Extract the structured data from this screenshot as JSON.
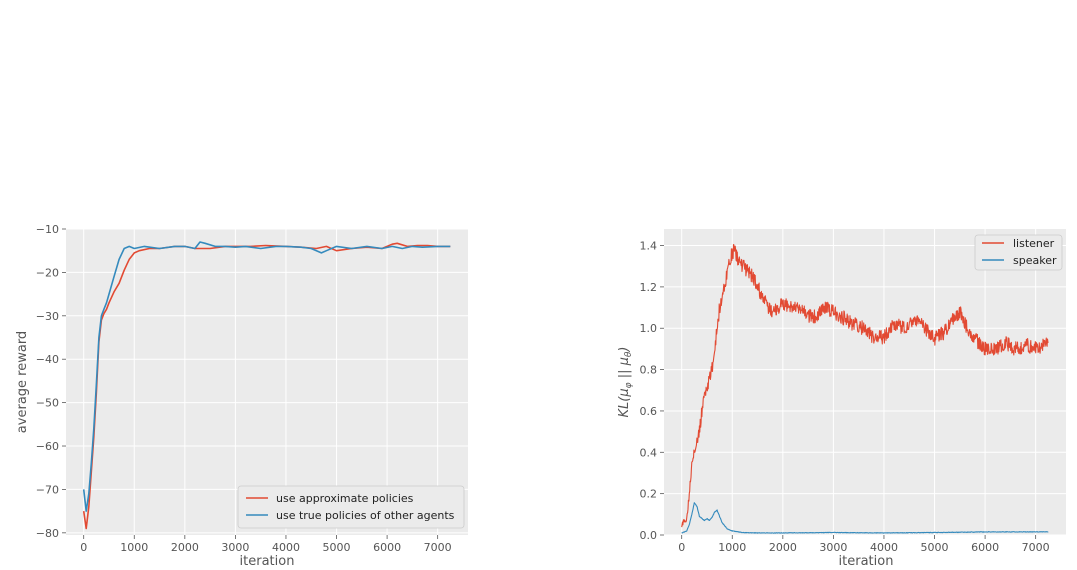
{
  "chart_data": [
    {
      "type": "line",
      "xlabel": "iteration",
      "ylabel": "average reward",
      "xlim": [
        -350,
        7600
      ],
      "ylim": [
        -80.5,
        -10
      ],
      "xticks": [
        0,
        1000,
        2000,
        3000,
        4000,
        5000,
        6000,
        7000
      ],
      "yticks": [
        -80,
        -70,
        -60,
        -50,
        -40,
        -30,
        -20,
        -10
      ],
      "xtick_labels": [
        "0",
        "1000",
        "2000",
        "3000",
        "4000",
        "5000",
        "6000",
        "7000"
      ],
      "ytick_labels": [
        "−80",
        "−70",
        "−60",
        "−50",
        "−40",
        "−30",
        "−20",
        "−10"
      ],
      "grid": true,
      "legend": "lower-right",
      "series": [
        {
          "name": "use approximate policies",
          "color": "#E24A33",
          "x": [
            0,
            50,
            100,
            150,
            200,
            250,
            300,
            350,
            400,
            450,
            500,
            600,
            700,
            800,
            900,
            1000,
            1100,
            1300,
            1500,
            1800,
            2000,
            2200,
            2500,
            2800,
            3000,
            3300,
            3600,
            4000,
            4300,
            4600,
            4800,
            5000,
            5300,
            5600,
            5900,
            6100,
            6200,
            6400,
            6600,
            6800,
            7000,
            7250
          ],
          "y": [
            -75,
            -79,
            -74,
            -66,
            -58,
            -48,
            -36,
            -31,
            -29.5,
            -28.5,
            -27,
            -24.5,
            -22.5,
            -19.5,
            -17,
            -15.5,
            -15,
            -14.5,
            -14.5,
            -14,
            -14,
            -14.5,
            -14.5,
            -14,
            -14,
            -14,
            -13.8,
            -14,
            -14.2,
            -14.5,
            -14,
            -15,
            -14.5,
            -14.2,
            -14.5,
            -13.5,
            -13.3,
            -14,
            -13.8,
            -13.8,
            -14,
            -14
          ]
        },
        {
          "name": "use true policies of other agents",
          "color": "#348ABD",
          "x": [
            0,
            50,
            100,
            150,
            200,
            250,
            300,
            350,
            400,
            450,
            500,
            600,
            700,
            800,
            900,
            1000,
            1200,
            1500,
            1800,
            2000,
            2200,
            2300,
            2400,
            2600,
            2800,
            3000,
            3200,
            3500,
            3800,
            4000,
            4300,
            4500,
            4700,
            4800,
            5000,
            5300,
            5600,
            5900,
            6100,
            6300,
            6500,
            6700,
            7000,
            7250
          ],
          "y": [
            -70,
            -75,
            -71,
            -64,
            -56,
            -46,
            -35,
            -30,
            -28.5,
            -27,
            -25,
            -21,
            -17,
            -14.5,
            -14,
            -14.5,
            -14,
            -14.5,
            -14,
            -14,
            -14.5,
            -13,
            -13.3,
            -14,
            -14,
            -14.2,
            -14,
            -14.5,
            -14,
            -14,
            -14.2,
            -14.5,
            -15.5,
            -15,
            -14,
            -14.5,
            -14,
            -14.5,
            -14,
            -14.5,
            -14,
            -14.2,
            -14,
            -14
          ]
        }
      ]
    },
    {
      "type": "line",
      "xlabel": "iteration",
      "ylabel": "KL(μ̂φ || μθ)",
      "ylabel_main": "KL(",
      "ylabel_mu": "μ",
      "ylabel_phi": "φ",
      "ylabel_sep": " || ",
      "ylabel_theta": "θ",
      "ylabel_close": ")",
      "xlim": [
        -350,
        7600
      ],
      "ylim": [
        0,
        1.48
      ],
      "xticks": [
        0,
        1000,
        2000,
        3000,
        4000,
        5000,
        6000,
        7000
      ],
      "yticks": [
        0.0,
        0.2,
        0.4,
        0.6,
        0.8,
        1.0,
        1.2,
        1.4
      ],
      "xtick_labels": [
        "0",
        "1000",
        "2000",
        "3000",
        "4000",
        "5000",
        "6000",
        "7000"
      ],
      "ytick_labels": [
        "0.0",
        "0.2",
        "0.4",
        "0.6",
        "0.8",
        "1.0",
        "1.2",
        "1.4"
      ],
      "grid": true,
      "legend": "top-right",
      "series": [
        {
          "name": "listener",
          "color": "#E24A33",
          "noise": 0.035,
          "x": [
            0,
            100,
            150,
            200,
            250,
            300,
            350,
            400,
            450,
            500,
            550,
            600,
            650,
            700,
            750,
            800,
            850,
            900,
            950,
            1000,
            1050,
            1100,
            1200,
            1300,
            1400,
            1500,
            1600,
            1700,
            1800,
            2000,
            2200,
            2400,
            2600,
            2800,
            3000,
            3200,
            3400,
            3600,
            3800,
            4000,
            4200,
            4400,
            4600,
            4800,
            5000,
            5200,
            5400,
            5500,
            5600,
            5800,
            6000,
            6200,
            6400,
            6600,
            6800,
            7000,
            7250
          ],
          "y": [
            0.05,
            0.08,
            0.2,
            0.35,
            0.42,
            0.45,
            0.5,
            0.6,
            0.68,
            0.72,
            0.75,
            0.8,
            0.9,
            1.0,
            1.1,
            1.15,
            1.2,
            1.28,
            1.33,
            1.36,
            1.38,
            1.34,
            1.3,
            1.28,
            1.25,
            1.2,
            1.15,
            1.1,
            1.08,
            1.12,
            1.1,
            1.08,
            1.05,
            1.1,
            1.08,
            1.05,
            1.02,
            1.0,
            0.95,
            0.96,
            1.02,
            1.0,
            1.05,
            1.0,
            0.95,
            0.98,
            1.05,
            1.08,
            1.02,
            0.95,
            0.9,
            0.9,
            0.93,
            0.9,
            0.92,
            0.9,
            0.93
          ]
        },
        {
          "name": "speaker",
          "color": "#348ABD",
          "noise": 0.004,
          "x": [
            0,
            100,
            150,
            200,
            250,
            300,
            350,
            400,
            450,
            500,
            550,
            600,
            650,
            700,
            750,
            800,
            900,
            1000,
            1200,
            1500,
            2000,
            3000,
            4000,
            5000,
            6000,
            7250
          ],
          "y": [
            0.01,
            0.02,
            0.05,
            0.1,
            0.155,
            0.14,
            0.09,
            0.08,
            0.07,
            0.08,
            0.07,
            0.085,
            0.11,
            0.12,
            0.09,
            0.06,
            0.03,
            0.02,
            0.012,
            0.01,
            0.01,
            0.012,
            0.01,
            0.012,
            0.015,
            0.015
          ]
        }
      ]
    }
  ]
}
